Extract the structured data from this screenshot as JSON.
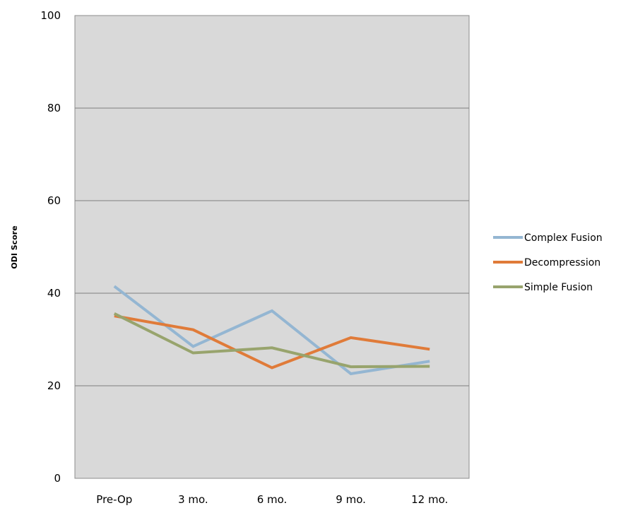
{
  "chart_data": {
    "type": "line",
    "title": "",
    "xlabel": "",
    "ylabel": "ODI Score",
    "categories": [
      "Pre-Op",
      "3 mo.",
      "6 mo.",
      "9 mo.",
      "12 mo."
    ],
    "ylim": [
      0,
      100
    ],
    "yticks": [
      "0",
      "20",
      "40",
      "60",
      "80",
      "100"
    ],
    "grid": true,
    "legend_position": "right",
    "plot_background": "#d9d9d9",
    "series": [
      {
        "name": "Complex Fusion",
        "color": "#94b6d2",
        "values": [
          41.5,
          28.5,
          36.2,
          22.6,
          25.3
        ]
      },
      {
        "name": "Decompression",
        "color": "#e07b39",
        "values": [
          35.1,
          32.1,
          23.9,
          30.4,
          27.9
        ]
      },
      {
        "name": "Simple Fusion",
        "color": "#98a46d",
        "values": [
          35.6,
          27.1,
          28.2,
          24.1,
          24.2
        ]
      }
    ]
  }
}
